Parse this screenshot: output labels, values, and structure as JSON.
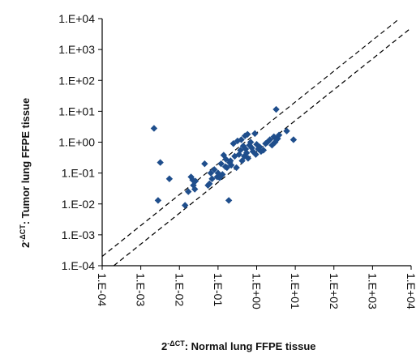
{
  "chart_data": {
    "type": "scatter",
    "scale": "log10",
    "xlabel": {
      "base": "2",
      "exponent": "-ΔCT",
      "text": ": Normal lung FFPE tissue"
    },
    "ylabel": {
      "base": "2",
      "exponent": "-ΔCT",
      "text": ": Tumor lung FFPE tissue"
    },
    "xlim": [
      0.0001,
      10000
    ],
    "ylim": [
      0.0001,
      10000
    ],
    "x_tick_labels": [
      "1.E-04",
      "1.E-03",
      "1.E-02",
      "1.E-01",
      "1.E+00",
      "1.E+01",
      "1.E+02",
      "1.E+03",
      "1.E+04"
    ],
    "y_tick_labels": [
      "1.E-04",
      "1.E-03",
      "1.E-02",
      "1.E-01",
      "1.E+00",
      "1.E+01",
      "1.E+02",
      "1.E+03",
      "1.E+04"
    ],
    "reference_lines": [
      {
        "style": "dashed",
        "slope": 1,
        "y_over_x": 2
      },
      {
        "style": "dashed",
        "slope": 1,
        "y_over_x": 0.5
      }
    ],
    "marker": "diamond",
    "color": "#1f4e8c",
    "points": [
      [
        0.0022,
        2.8
      ],
      [
        0.0028,
        0.013
      ],
      [
        0.0032,
        0.22
      ],
      [
        0.0055,
        0.065
      ],
      [
        0.014,
        0.009
      ],
      [
        0.017,
        0.025
      ],
      [
        0.02,
        0.075
      ],
      [
        0.022,
        0.06
      ],
      [
        0.023,
        0.04
      ],
      [
        0.025,
        0.03
      ],
      [
        0.026,
        0.055
      ],
      [
        0.045,
        0.2
      ],
      [
        0.055,
        0.04
      ],
      [
        0.06,
        0.045
      ],
      [
        0.065,
        0.1
      ],
      [
        0.07,
        0.065
      ],
      [
        0.08,
        0.13
      ],
      [
        0.095,
        0.075
      ],
      [
        0.1,
        0.1
      ],
      [
        0.11,
        0.07
      ],
      [
        0.12,
        0.2
      ],
      [
        0.13,
        0.09
      ],
      [
        0.14,
        0.38
      ],
      [
        0.155,
        0.16
      ],
      [
        0.16,
        0.28
      ],
      [
        0.17,
        0.15
      ],
      [
        0.19,
        0.013
      ],
      [
        0.2,
        0.22
      ],
      [
        0.21,
        0.25
      ],
      [
        0.22,
        0.18
      ],
      [
        0.25,
        0.9
      ],
      [
        0.27,
        0.35
      ],
      [
        0.3,
        0.15
      ],
      [
        0.32,
        1.1
      ],
      [
        0.35,
        0.4
      ],
      [
        0.38,
        0.55
      ],
      [
        0.4,
        1.2
      ],
      [
        0.42,
        0.25
      ],
      [
        0.45,
        0.75
      ],
      [
        0.48,
        0.35
      ],
      [
        0.5,
        1.6
      ],
      [
        0.52,
        0.6
      ],
      [
        0.55,
        0.45
      ],
      [
        0.58,
        1.8
      ],
      [
        0.6,
        0.3
      ],
      [
        0.65,
        0.8
      ],
      [
        0.7,
        1.0
      ],
      [
        0.75,
        0.65
      ],
      [
        0.8,
        0.5
      ],
      [
        0.9,
        1.9
      ],
      [
        0.95,
        0.4
      ],
      [
        1.0,
        0.85
      ],
      [
        1.1,
        0.6
      ],
      [
        1.2,
        0.7
      ],
      [
        1.3,
        0.5
      ],
      [
        1.5,
        0.55
      ],
      [
        1.7,
        0.9
      ],
      [
        1.9,
        1.0
      ],
      [
        2.2,
        1.2
      ],
      [
        2.5,
        0.8
      ],
      [
        2.8,
        1.5
      ],
      [
        3.0,
        1.0
      ],
      [
        3.2,
        11.5
      ],
      [
        3.5,
        1.3
      ],
      [
        3.8,
        1.7
      ],
      [
        6.0,
        2.3
      ],
      [
        9.0,
        1.2
      ]
    ]
  }
}
